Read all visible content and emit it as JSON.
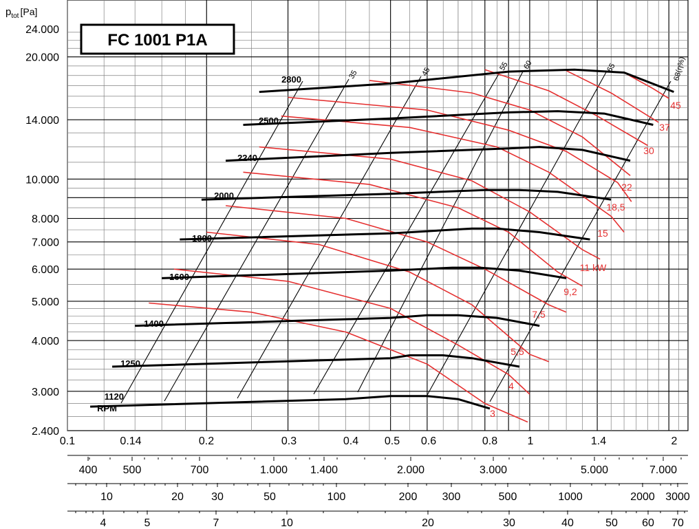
{
  "chart_data": {
    "type": "line",
    "title": "FC 1001 P1A",
    "ylabel": "p",
    "ylabel_sub": "tot",
    "ylabel_unit": "[Pa]",
    "y_scale": "log",
    "x_scale": "log",
    "ylim": [
      2400,
      24000
    ],
    "xlim": [
      0.1,
      2.2
    ],
    "grid": true,
    "y_ticks": [
      "24.000",
      "20.000",
      "14.000",
      "10.000",
      "8.000",
      "7.000",
      "6.000",
      "5.000",
      "4.000",
      "3.000",
      "2.400"
    ],
    "x_axes": [
      {
        "labels": [
          "0.1",
          "0.14",
          "0.2",
          "0.3",
          "0.4",
          "0.5",
          "0.6",
          "0.8",
          "1",
          "1.4",
          "2"
        ]
      },
      {
        "labels": [
          "400",
          "500",
          "700",
          "1.000",
          "1.400",
          "2.000",
          "3.000",
          "5.000",
          "7.000"
        ]
      },
      {
        "labels": [
          "10",
          "20",
          "30",
          "50",
          "100",
          "200",
          "300",
          "500",
          "1000",
          "2000",
          "3000"
        ]
      },
      {
        "labels": [
          "4",
          "5",
          "7",
          "10",
          "20",
          "30",
          "40",
          "50",
          "60",
          "70"
        ]
      }
    ],
    "rpm_curves": [
      {
        "name": "2800",
        "points": [
          [
            0.26,
            16400
          ],
          [
            0.5,
            17200
          ],
          [
            0.9,
            18400
          ],
          [
            1.25,
            18600
          ],
          [
            1.6,
            18300
          ],
          [
            2.05,
            16400
          ]
        ]
      },
      {
        "name": "2500",
        "points": [
          [
            0.24,
            13600
          ],
          [
            0.5,
            14100
          ],
          [
            0.9,
            14600
          ],
          [
            1.15,
            14700
          ],
          [
            1.45,
            14500
          ],
          [
            1.85,
            13600
          ]
        ]
      },
      {
        "name": "2240",
        "points": [
          [
            0.22,
            11100
          ],
          [
            0.5,
            11600
          ],
          [
            0.9,
            11900
          ],
          [
            1.05,
            12000
          ],
          [
            1.3,
            11800
          ],
          [
            1.65,
            11100
          ]
        ]
      },
      {
        "name": "2000",
        "points": [
          [
            0.195,
            8900
          ],
          [
            0.5,
            9200
          ],
          [
            0.8,
            9400
          ],
          [
            0.95,
            9400
          ],
          [
            1.15,
            9300
          ],
          [
            1.5,
            8900
          ]
        ]
      },
      {
        "name": "1800",
        "points": [
          [
            0.175,
            7100
          ],
          [
            0.5,
            7350
          ],
          [
            0.75,
            7550
          ],
          [
            0.85,
            7550
          ],
          [
            1.05,
            7400
          ],
          [
            1.35,
            7100
          ]
        ]
      },
      {
        "name": "1600",
        "points": [
          [
            0.16,
            5700
          ],
          [
            0.5,
            5950
          ],
          [
            0.68,
            6050
          ],
          [
            0.78,
            6050
          ],
          [
            0.95,
            5950
          ],
          [
            1.2,
            5700
          ]
        ]
      },
      {
        "name": "1400",
        "points": [
          [
            0.14,
            4350
          ],
          [
            0.5,
            4550
          ],
          [
            0.6,
            4620
          ],
          [
            0.7,
            4620
          ],
          [
            0.85,
            4550
          ],
          [
            1.05,
            4350
          ]
        ]
      },
      {
        "name": "1250",
        "points": [
          [
            0.125,
            3450
          ],
          [
            0.5,
            3620
          ],
          [
            0.55,
            3680
          ],
          [
            0.65,
            3680
          ],
          [
            0.75,
            3620
          ],
          [
            0.95,
            3450
          ]
        ]
      },
      {
        "name": "1120",
        "points": [
          [
            0.112,
            2750
          ],
          [
            0.4,
            2870
          ],
          [
            0.5,
            2920
          ],
          [
            0.6,
            2920
          ],
          [
            0.7,
            2870
          ],
          [
            0.82,
            2720
          ]
        ]
      }
    ],
    "power_curves": [
      {
        "name": "3",
        "points": [
          [
            0.15,
            4950
          ],
          [
            0.25,
            4700
          ],
          [
            0.4,
            4200
          ],
          [
            0.6,
            3500
          ],
          [
            0.8,
            2800
          ],
          [
            0.99,
            2520
          ]
        ]
      },
      {
        "name": "4",
        "points": [
          [
            0.17,
            6000
          ],
          [
            0.3,
            5600
          ],
          [
            0.5,
            4800
          ],
          [
            0.7,
            3900
          ],
          [
            0.9,
            3300
          ],
          [
            1.0,
            2950
          ]
        ]
      },
      {
        "name": "5,5",
        "points": [
          [
            0.2,
            7400
          ],
          [
            0.35,
            6900
          ],
          [
            0.55,
            5900
          ],
          [
            0.75,
            4900
          ],
          [
            1.0,
            3700
          ],
          [
            1.1,
            3550
          ]
        ]
      },
      {
        "name": "7,5",
        "points": [
          [
            0.22,
            8600
          ],
          [
            0.4,
            8000
          ],
          [
            0.6,
            7000
          ],
          [
            0.8,
            6000
          ],
          [
            1.1,
            4900
          ],
          [
            1.2,
            4700
          ]
        ]
      },
      {
        "name": "9,2",
        "points": [
          [
            0.24,
            10400
          ],
          [
            0.45,
            9700
          ],
          [
            0.7,
            8500
          ],
          [
            0.9,
            7400
          ],
          [
            1.15,
            5900
          ],
          [
            1.3,
            5450
          ]
        ]
      },
      {
        "name": "11 kW",
        "points": [
          [
            0.26,
            12000
          ],
          [
            0.5,
            11200
          ],
          [
            0.75,
            9900
          ],
          [
            1.0,
            8300
          ],
          [
            1.3,
            6700
          ],
          [
            1.42,
            6350
          ]
        ]
      },
      {
        "name": "15",
        "points": [
          [
            0.29,
            14300
          ],
          [
            0.55,
            13400
          ],
          [
            0.85,
            12000
          ],
          [
            1.1,
            10400
          ],
          [
            1.5,
            8100
          ],
          [
            1.6,
            7400
          ]
        ]
      },
      {
        "name": "18,5",
        "points": [
          [
            0.3,
            15900
          ],
          [
            0.6,
            14800
          ],
          [
            0.9,
            13200
          ],
          [
            1.2,
            11700
          ],
          [
            1.55,
            9800
          ],
          [
            1.66,
            8800
          ]
        ]
      },
      {
        "name": "22",
        "points": [
          [
            0.45,
            17500
          ],
          [
            0.75,
            16300
          ],
          [
            1.0,
            14800
          ],
          [
            1.3,
            12700
          ],
          [
            1.65,
            10200
          ]
        ]
      },
      {
        "name": "30",
        "points": [
          [
            0.8,
            18600
          ],
          [
            1.1,
            16500
          ],
          [
            1.4,
            14300
          ],
          [
            1.8,
            12100
          ]
        ]
      },
      {
        "name": "37",
        "points": [
          [
            1.2,
            18500
          ],
          [
            1.5,
            16300
          ],
          [
            1.9,
            13800
          ]
        ]
      },
      {
        "name": "45",
        "points": [
          [
            1.6,
            18300
          ],
          [
            1.85,
            16700
          ],
          [
            2.0,
            15800
          ]
        ]
      }
    ],
    "efficiency_labels": [
      "35",
      "45",
      "55",
      "60",
      "65",
      "68(η%)"
    ]
  }
}
